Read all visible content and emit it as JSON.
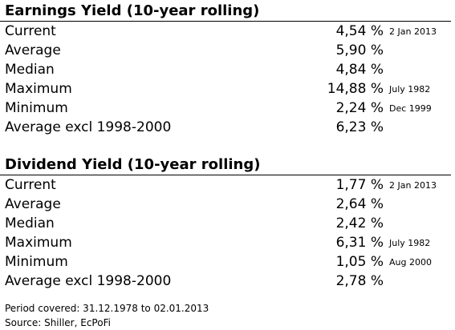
{
  "sections": [
    {
      "title": "Earnings Yield (10-year rolling)",
      "rows": [
        {
          "label": "Current",
          "value": "4,54 %",
          "note": "2 Jan 2013"
        },
        {
          "label": "Average",
          "value": "5,90 %"
        },
        {
          "label": "Median",
          "value": "4,84 %"
        },
        {
          "label": "Maximum",
          "value": "14,88 %",
          "note": "July 1982"
        },
        {
          "label": "Minimum",
          "value": "2,24 %",
          "note": "Dec 1999"
        },
        {
          "label": "Average excl 1998-2000",
          "value": "6,23 %"
        }
      ]
    },
    {
      "title": "Dividend Yield (10-year rolling)",
      "rows": [
        {
          "label": "Current",
          "value": "1,77 %",
          "note": "2 Jan 2013"
        },
        {
          "label": "Average",
          "value": "2,64 %"
        },
        {
          "label": "Median",
          "value": "2,42 %"
        },
        {
          "label": "Maximum",
          "value": "6,31 %",
          "note": "July 1982"
        },
        {
          "label": "Minimum",
          "value": "1,05 %",
          "note": "Aug 2000"
        },
        {
          "label": "Average excl 1998-2000",
          "value": "2,78 %"
        }
      ]
    }
  ],
  "footer": [
    "Period covered: 31.12.1978 to 02.01.2013",
    "Source: Shiller, EcPoFi"
  ]
}
